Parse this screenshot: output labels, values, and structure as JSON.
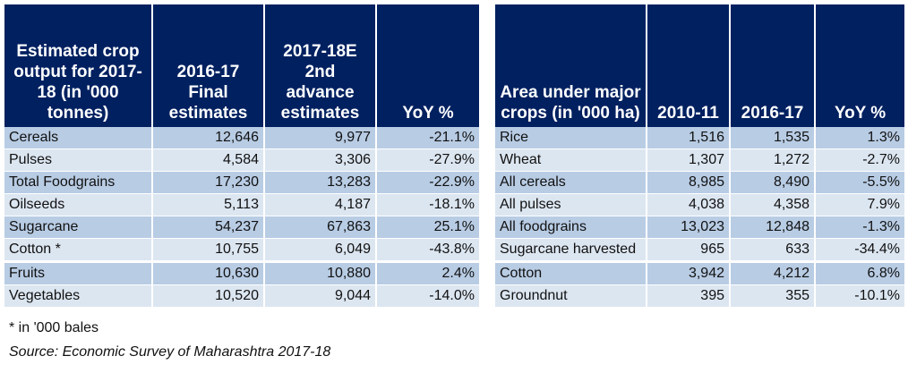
{
  "chart_data": [
    {
      "type": "table",
      "headers": [
        "Estimated crop output for 2017-18 (in '000 tonnes)",
        "2016-17 Final estimates",
        "2017-18E 2nd advance estimates",
        "YoY %"
      ],
      "rows": [
        [
          "Cereals",
          "12,646",
          "9,977",
          "-21.1%"
        ],
        [
          "Pulses",
          "4,584",
          "3,306",
          "-27.9%"
        ],
        [
          "Total Foodgrains",
          "17,230",
          "13,283",
          "-22.9%"
        ],
        [
          "Oilseeds",
          "5,113",
          "4,187",
          "-18.1%"
        ],
        [
          "Sugarcane",
          "54,237",
          "67,863",
          "25.1%"
        ],
        [
          "Cotton *",
          "10,755",
          "6,049",
          "-43.8%"
        ],
        [
          "Fruits",
          "10,630",
          "10,880",
          "2.4%"
        ],
        [
          "Vegetables",
          "10,520",
          "9,044",
          "-14.0%"
        ]
      ]
    },
    {
      "type": "table",
      "headers": [
        "Area under major crops (in '000 ha)",
        "2010-11",
        "2016-17",
        "YoY %"
      ],
      "rows": [
        [
          "Rice",
          "1,516",
          "1,535",
          "1.3%"
        ],
        [
          "Wheat",
          "1,307",
          "1,272",
          "-2.7%"
        ],
        [
          "All cereals",
          "8,985",
          "8,490",
          "-5.5%"
        ],
        [
          "All pulses",
          "4,038",
          "4,358",
          "7.9%"
        ],
        [
          "All foodgrains",
          "13,023",
          "12,848",
          "-1.3%"
        ],
        [
          "Sugarcane harvested",
          "965",
          "633",
          "-34.4%"
        ],
        [
          "Cotton",
          "3,942",
          "4,212",
          "6.8%"
        ],
        [
          "Groundnut",
          "395",
          "355",
          "-10.1%"
        ]
      ]
    }
  ],
  "footnote": "* in '000 bales",
  "source": "Source: Economic Survey of Maharashtra 2017-18",
  "colors": {
    "header": "#002060",
    "row_dark": "#B8CCE4",
    "row_light": "#DCE6F1"
  }
}
